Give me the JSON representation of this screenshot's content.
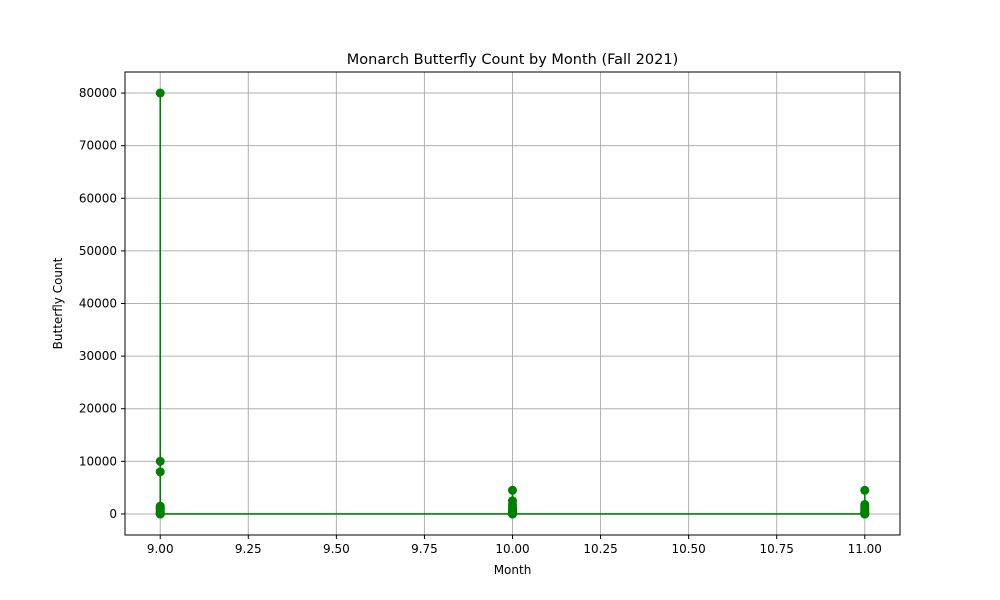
{
  "chart_data": {
    "type": "line",
    "title": "Monarch Butterfly Count by Month (Fall 2021)",
    "xlabel": "Month",
    "ylabel": "Butterfly Count",
    "xlim": [
      8.9,
      11.1
    ],
    "ylim": [
      -4000,
      84000
    ],
    "grid": true,
    "x_ticks": [
      9.0,
      9.25,
      9.5,
      9.75,
      10.0,
      10.25,
      10.5,
      10.75,
      11.0
    ],
    "x_tick_labels": [
      "9.00",
      "9.25",
      "9.50",
      "9.75",
      "10.00",
      "10.25",
      "10.50",
      "10.75",
      "11.00"
    ],
    "y_ticks": [
      0,
      10000,
      20000,
      30000,
      40000,
      50000,
      60000,
      70000,
      80000
    ],
    "y_tick_labels": [
      "0",
      "10000",
      "20000",
      "30000",
      "40000",
      "50000",
      "60000",
      "70000",
      "80000"
    ],
    "series": [
      {
        "color": "#008000",
        "marker": "circle",
        "x": [
          9,
          9,
          9,
          9,
          9,
          9,
          9,
          9,
          9,
          9,
          9,
          9,
          9,
          9,
          10,
          10,
          10,
          10,
          10,
          10,
          10,
          10,
          10,
          10,
          10,
          10,
          11,
          11,
          11,
          11,
          11,
          11,
          11,
          11,
          11,
          11,
          11,
          11
        ],
        "y": [
          80000,
          0,
          10000,
          8000,
          0,
          1500,
          1200,
          1000,
          800,
          500,
          300,
          150,
          50,
          0,
          0,
          4500,
          2500,
          1800,
          1200,
          900,
          600,
          400,
          200,
          100,
          0,
          0,
          0,
          4500,
          1800,
          1300,
          1000,
          700,
          500,
          300,
          200,
          100,
          0,
          0
        ]
      }
    ]
  }
}
